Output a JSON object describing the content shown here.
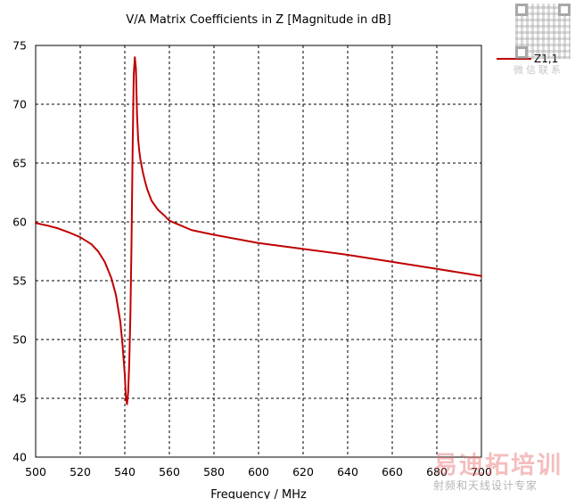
{
  "colors": {
    "series": "#c00000",
    "grid": "#000000",
    "background": "#ffffff"
  },
  "watermarks": {
    "qr_caption": "微信联系",
    "brand": "易迪拓培训",
    "brand_sub": "射频和天线设计专家"
  },
  "chart_data": {
    "type": "line",
    "title": "V/A Matrix Coefficients in Z [Magnitude in dB]",
    "xlabel": "Frequency / MHz",
    "ylabel": "",
    "xlim": [
      500,
      700
    ],
    "ylim": [
      40,
      75
    ],
    "xticks": [
      500,
      520,
      540,
      560,
      580,
      600,
      620,
      640,
      660,
      680,
      700
    ],
    "yticks": [
      40,
      45,
      50,
      55,
      60,
      65,
      70,
      75
    ],
    "grid": true,
    "legend_position": "right",
    "series": [
      {
        "name": "Z1,1",
        "color": "#c00000",
        "x": [
          500,
          505,
          510,
          515,
          520,
          525,
          528,
          531,
          534,
          536,
          538,
          539,
          540,
          540.5,
          541,
          541.5,
          542,
          542.5,
          543,
          543.5,
          544,
          544.5,
          545,
          545.5,
          546,
          546.5,
          547,
          548,
          549,
          550,
          552,
          555,
          558,
          560,
          565,
          570,
          580,
          590,
          600,
          620,
          640,
          660,
          680,
          700
        ],
        "y": [
          59.9,
          59.7,
          59.45,
          59.1,
          58.7,
          58.1,
          57.5,
          56.6,
          55.2,
          53.8,
          51.5,
          49.5,
          47.0,
          45.0,
          44.5,
          45.5,
          48.0,
          52.0,
          58.0,
          66.0,
          72.5,
          74.0,
          73.0,
          69.0,
          67.0,
          66.0,
          65.3,
          64.3,
          63.5,
          62.8,
          61.8,
          61.0,
          60.5,
          60.1,
          59.7,
          59.3,
          58.9,
          58.55,
          58.2,
          57.7,
          57.2,
          56.6,
          56.0,
          55.4
        ]
      }
    ]
  }
}
